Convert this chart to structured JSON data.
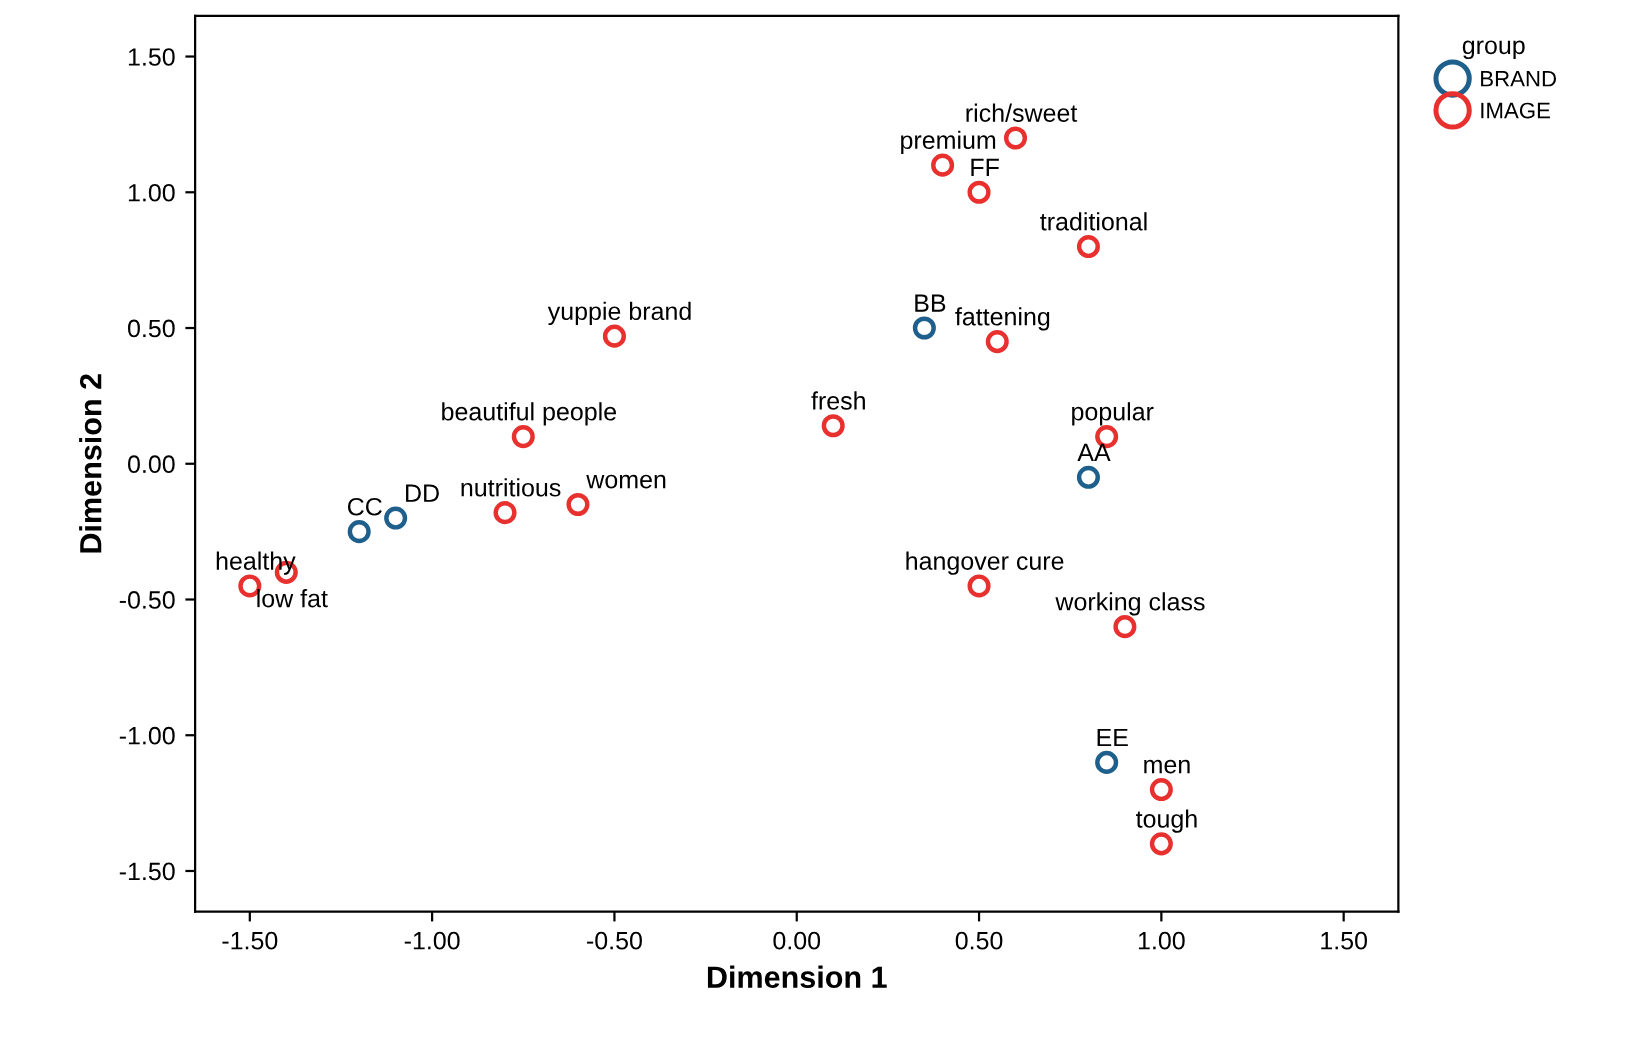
{
  "chart_data": {
    "type": "scatter",
    "xlabel": "Dimension 1",
    "ylabel": "Dimension 2",
    "legend_title": "group",
    "legend": "right",
    "marker": "circle",
    "grid": false,
    "xlim": [
      -1.65,
      1.65
    ],
    "ylim": [
      -1.65,
      1.65
    ],
    "xticks": [
      {
        "value": -1.5,
        "label": "-1.50"
      },
      {
        "value": -1.0,
        "label": "-1.00"
      },
      {
        "value": -0.5,
        "label": "-0.50"
      },
      {
        "value": 0,
        "label": "0.00"
      },
      {
        "value": 0.5,
        "label": "0.50"
      },
      {
        "value": 1.0,
        "label": "1.00"
      },
      {
        "value": 1.5,
        "label": "1.50"
      }
    ],
    "yticks": [
      {
        "value": -1.5,
        "label": "-1.50"
      },
      {
        "value": -1.0,
        "label": "-1.00"
      },
      {
        "value": -0.5,
        "label": "-0.50"
      },
      {
        "value": 0,
        "label": "0.00"
      },
      {
        "value": 0.5,
        "label": "0.50"
      },
      {
        "value": 1.0,
        "label": "1.00"
      },
      {
        "value": 1.5,
        "label": "1.50"
      }
    ],
    "series": [
      {
        "name": "BRAND",
        "color": "#1f5f8b",
        "x": [
          -1.2,
          -1.1,
          0.35,
          0.8,
          0.85
        ],
        "values": [
          -0.25,
          -0.2,
          0.5,
          -0.05,
          -1.1
        ]
      },
      {
        "name": "IMAGE",
        "color": "#e8312f",
        "x": [
          -1.5,
          -1.4,
          -0.8,
          -0.6,
          -0.75,
          -0.5,
          0.1,
          0.55,
          0.4,
          0.5,
          0.6,
          0.8,
          0.85,
          0.5,
          0.9,
          1.0,
          1.0
        ],
        "values": [
          -0.45,
          -0.4,
          -0.18,
          -0.15,
          0.1,
          0.47,
          0.14,
          0.45,
          1.1,
          1.0,
          1.2,
          0.8,
          0.1,
          -0.45,
          -0.6,
          -1.2,
          -1.4
        ]
      }
    ],
    "annotations": [
      {
        "text": "CC",
        "x": -1.2,
        "y": -0.25
      },
      {
        "text": "DD",
        "x": -1.1,
        "y": -0.2
      },
      {
        "text": "BB",
        "x": 0.35,
        "y": 0.5
      },
      {
        "text": "AA",
        "x": 0.8,
        "y": -0.05
      },
      {
        "text": "EE",
        "x": 0.85,
        "y": -1.1
      },
      {
        "text": "healthy",
        "x": -1.5,
        "y": -0.45
      },
      {
        "text": "low fat",
        "x": -1.4,
        "y": -0.4
      },
      {
        "text": "nutritious",
        "x": -0.8,
        "y": -0.18
      },
      {
        "text": "women",
        "x": -0.6,
        "y": -0.15
      },
      {
        "text": "beautiful people",
        "x": -0.75,
        "y": 0.1
      },
      {
        "text": "yuppie brand",
        "x": -0.5,
        "y": 0.47
      },
      {
        "text": "fresh",
        "x": 0.1,
        "y": 0.14
      },
      {
        "text": "fattening",
        "x": 0.55,
        "y": 0.45
      },
      {
        "text": "premium",
        "x": 0.4,
        "y": 1.1
      },
      {
        "text": "FF",
        "x": 0.5,
        "y": 1.0
      },
      {
        "text": "rich/sweet",
        "x": 0.6,
        "y": 1.2
      },
      {
        "text": "traditional",
        "x": 0.8,
        "y": 0.8
      },
      {
        "text": "popular",
        "x": 0.85,
        "y": 0.1
      },
      {
        "text": "hangover cure",
        "x": 0.5,
        "y": -0.45
      },
      {
        "text": "working class",
        "x": 0.9,
        "y": -0.6
      },
      {
        "text": "men",
        "x": 1.0,
        "y": -1.2
      },
      {
        "text": "tough",
        "x": 1.0,
        "y": -1.4
      }
    ]
  }
}
